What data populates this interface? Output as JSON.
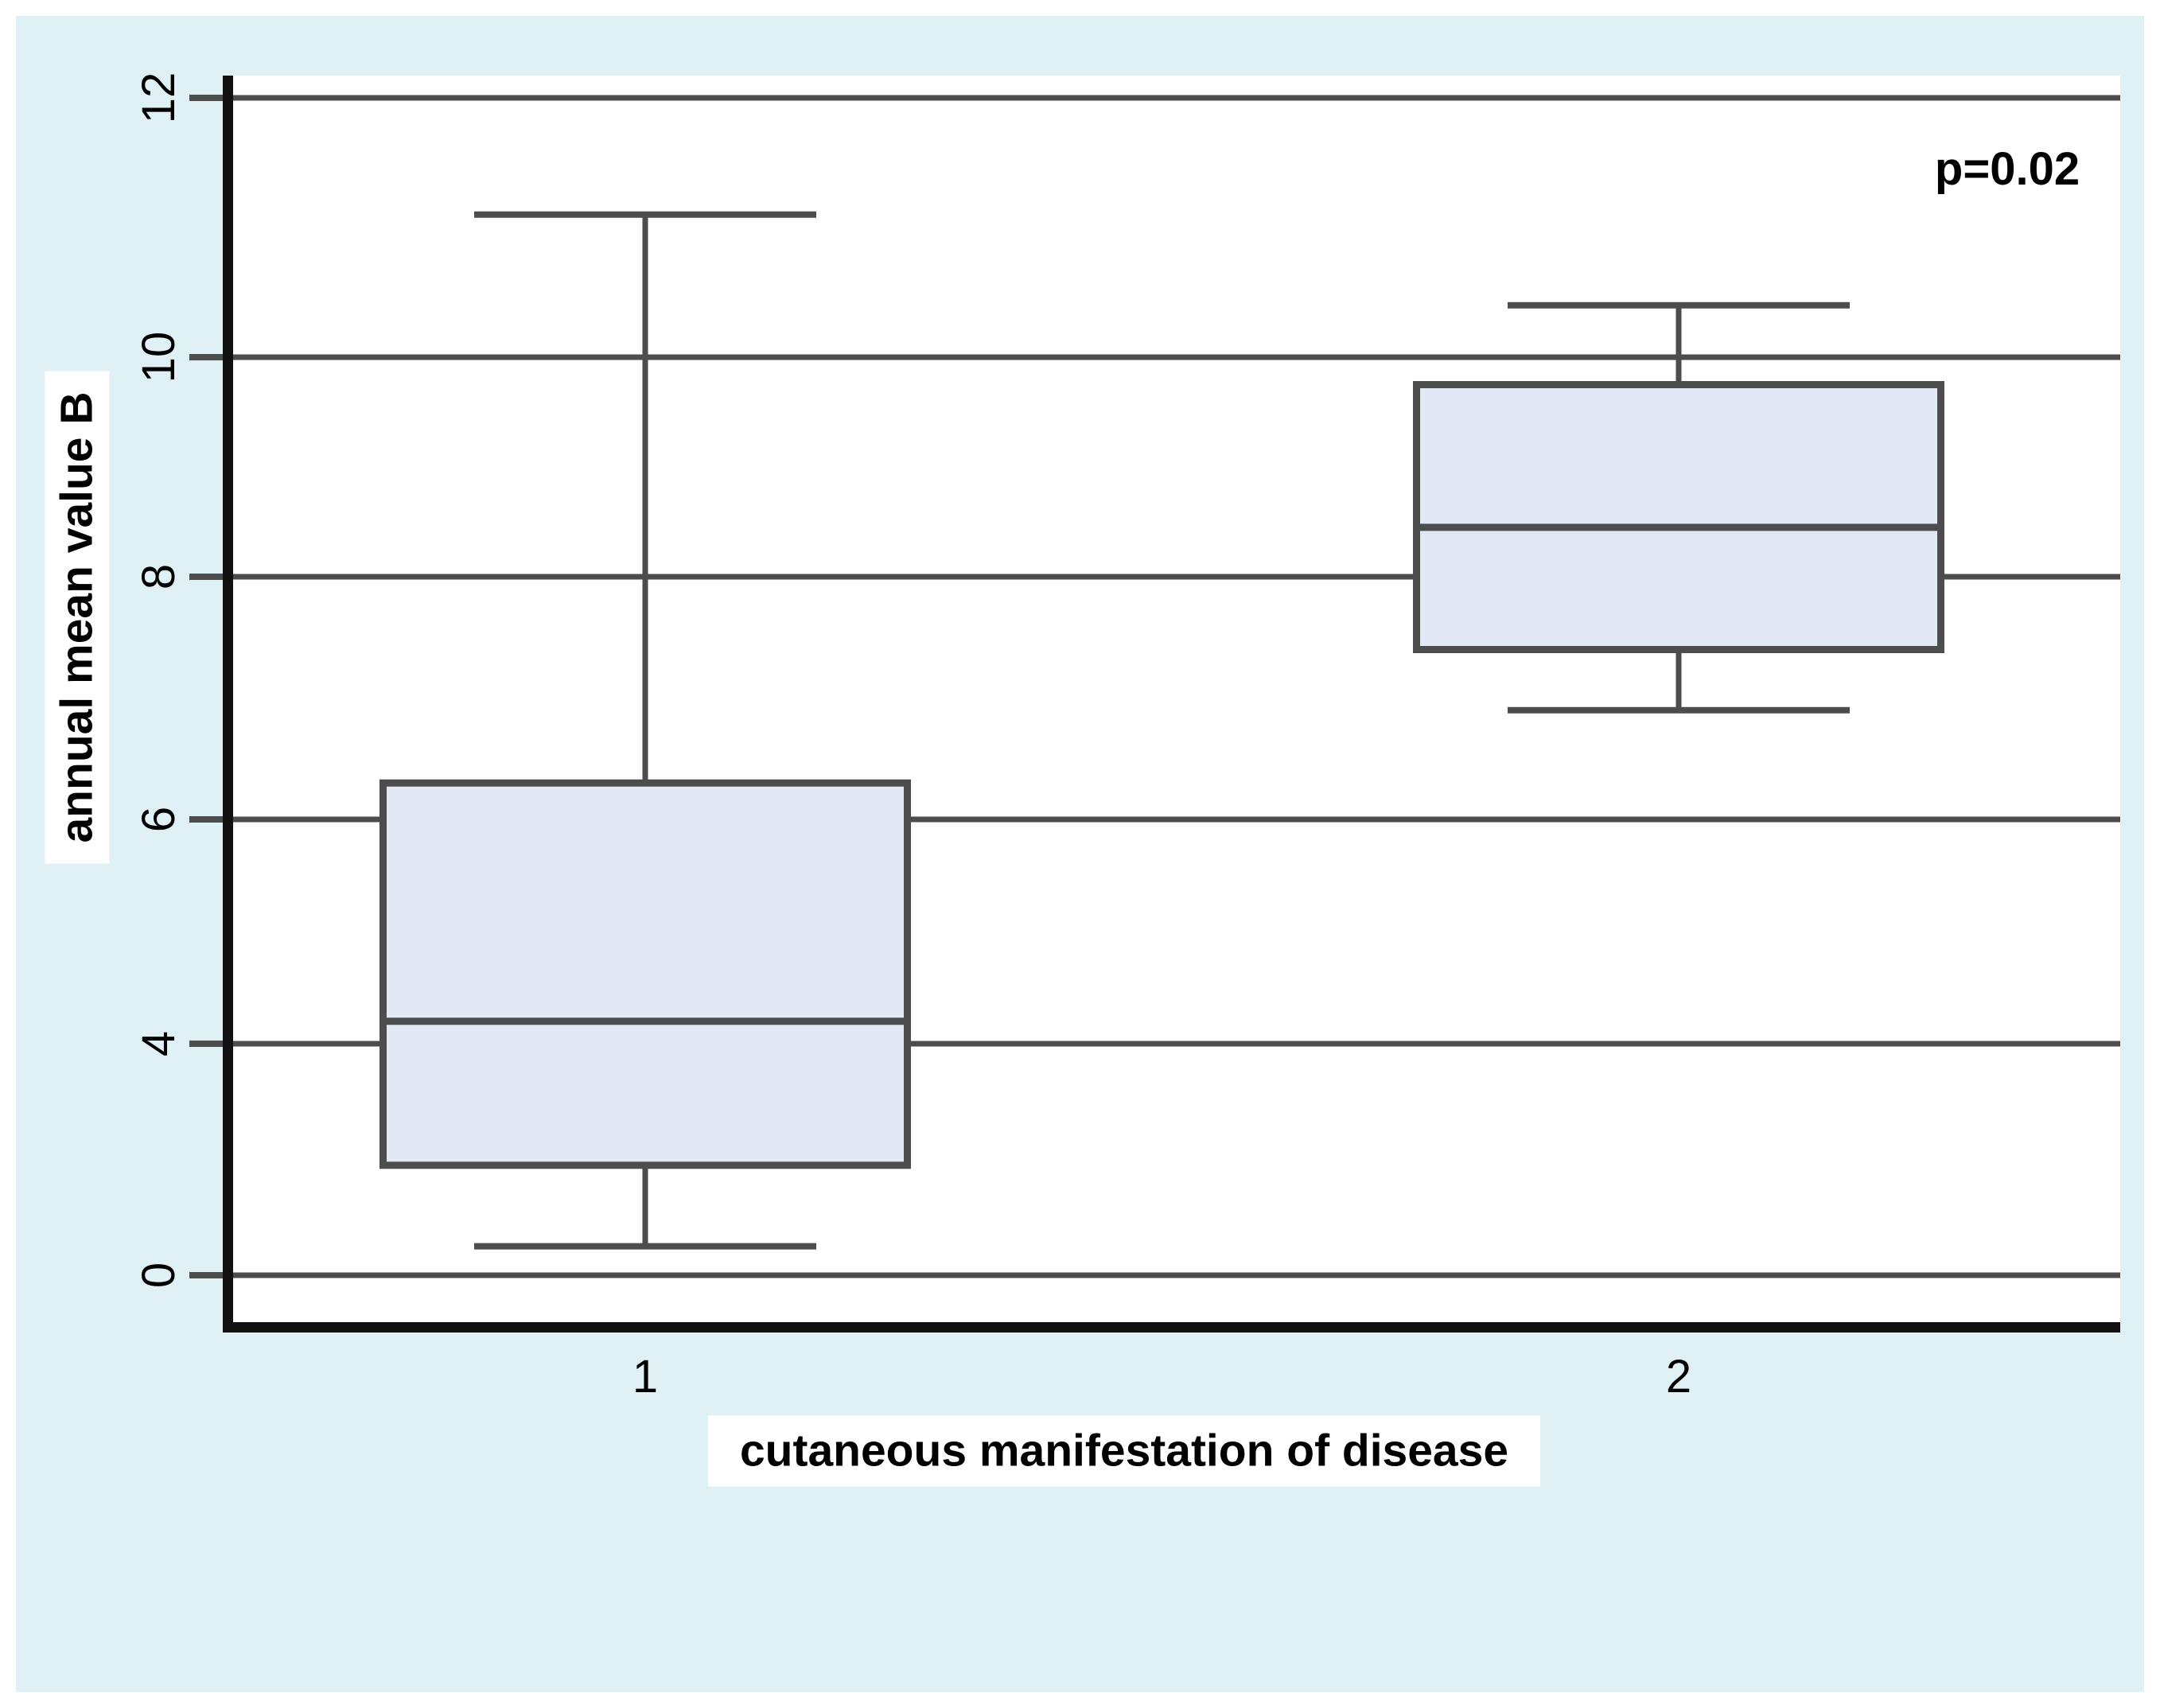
{
  "chart_data": {
    "type": "boxplot",
    "title": "",
    "xlabel": "cutaneous manifestation of disease",
    "ylabel": "annual mean value B",
    "categories": [
      "1",
      "2"
    ],
    "series": [
      {
        "name": "1",
        "min": 0.5,
        "q1": 1.9,
        "median": 4.2,
        "q3": 6.3,
        "max": 11.1
      },
      {
        "name": "2",
        "min": 6.9,
        "q1": 7.4,
        "median": 8.45,
        "q3": 9.75,
        "max": 10.4
      }
    ],
    "yticks": [
      0,
      4,
      6,
      8,
      10,
      12
    ],
    "ytick_labels": [
      "0",
      "4",
      "6",
      "8",
      "10",
      "12"
    ],
    "ylim": [
      0,
      12
    ],
    "grid": true,
    "legend": "none",
    "tick_label_rotation_deg": 90,
    "annotations": [
      {
        "text": "p=0.02",
        "position": "top-right"
      }
    ]
  },
  "colors": {
    "page_background": "#ffffff",
    "figure_background": "#dff1f4",
    "plot_background": "#ffffff",
    "box_fill": "#e2e9f5",
    "line_gray": "#4d4d4d",
    "axis_black": "#111111",
    "text": "#000000"
  }
}
